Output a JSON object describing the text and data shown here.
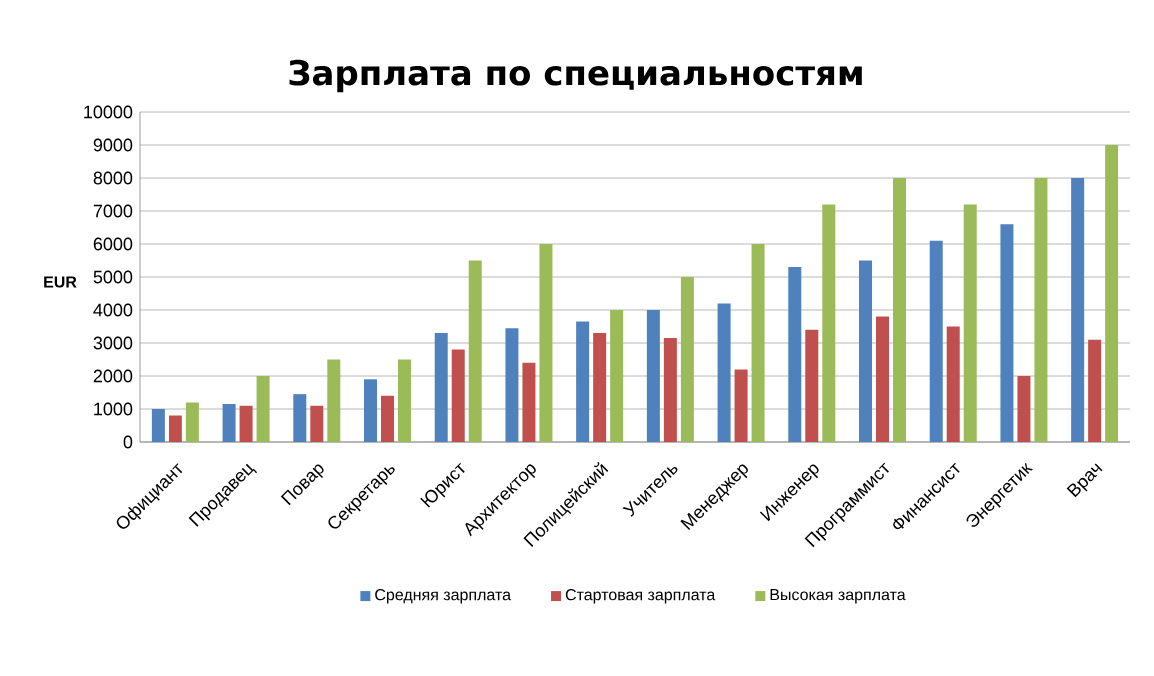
{
  "chart_data": {
    "type": "bar",
    "title": "Зарплата по специальностям",
    "ylabel": "EUR",
    "categories": [
      "Официант",
      "Продавец",
      "Повар",
      "Секретарь",
      "Юрист",
      "Архитектор",
      "Полицейский",
      "Учитель",
      "Менеджер",
      "Инженер",
      "Программист",
      "Финансист",
      "Энергетик",
      "Врач"
    ],
    "series": [
      {
        "name": "Средняя зарплата",
        "color": "#4f81bd",
        "values": [
          1000,
          1150,
          1450,
          1900,
          3300,
          3450,
          3650,
          4000,
          4200,
          5300,
          5500,
          6100,
          6600,
          8000
        ]
      },
      {
        "name": "Стартовая зарплата",
        "color": "#c0504d",
        "values": [
          800,
          1100,
          1100,
          1400,
          2800,
          2400,
          3300,
          3150,
          2200,
          3400,
          3800,
          3500,
          2000,
          3100
        ]
      },
      {
        "name": "Высокая зарплата",
        "color": "#9bbb59",
        "values": [
          1200,
          2000,
          2500,
          2500,
          5500,
          6000,
          4000,
          5000,
          6000,
          7200,
          8000,
          7200,
          8000,
          9000
        ]
      }
    ],
    "ylim": [
      0,
      10000
    ],
    "yticks": [
      0,
      1000,
      2000,
      3000,
      4000,
      5000,
      6000,
      7000,
      8000,
      9000,
      10000
    ],
    "grid": "y",
    "legend": "bottom"
  }
}
